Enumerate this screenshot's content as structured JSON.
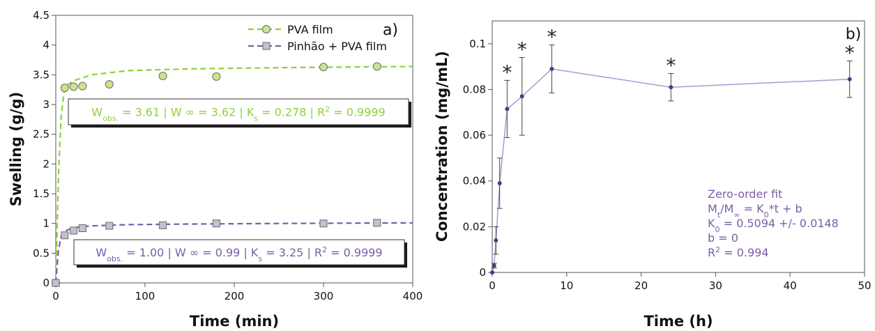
{
  "chart_data": [
    {
      "type": "line",
      "panel_label": "a)",
      "xlabel": "Time (min)",
      "ylabel": "Swelling (g/g)",
      "xlim": [
        0,
        400
      ],
      "ylim": [
        0,
        4.5
      ],
      "xticks": [
        0,
        100,
        200,
        300,
        400
      ],
      "yticks": [
        0,
        0.5,
        1,
        1.5,
        2,
        2.5,
        3,
        3.5,
        4,
        4.5
      ],
      "grid": false,
      "legend_position": "top-right",
      "series": [
        {
          "name": "PVA film",
          "color": "#8fcf3c",
          "marker": "circle",
          "points": [
            [
              0,
              0
            ],
            [
              10,
              3.28
            ],
            [
              20,
              3.3
            ],
            [
              30,
              3.31
            ],
            [
              60,
              3.34
            ],
            [
              120,
              3.48
            ],
            [
              180,
              3.47
            ],
            [
              300,
              3.63
            ],
            [
              360,
              3.64
            ]
          ],
          "fit": [
            [
              0,
              0
            ],
            [
              3,
              1.8
            ],
            [
              6,
              2.8
            ],
            [
              10,
              3.3
            ],
            [
              20,
              3.4
            ],
            [
              40,
              3.5
            ],
            [
              80,
              3.57
            ],
            [
              150,
              3.6
            ],
            [
              250,
              3.62
            ],
            [
              400,
              3.64
            ]
          ],
          "annotation_parts": [
            {
              "text": "W",
              "sub": false
            },
            {
              "text": "obs.",
              "sub": true
            },
            {
              "text": " = 3.61 | W ∞ = 3.62 | K",
              "sub": false
            },
            {
              "text": "s",
              "sub": true
            },
            {
              "text": " = 0.278 | R",
              "sub": false
            },
            {
              "text": "2",
              "sup": true
            },
            {
              "text": " = 0.9999",
              "sub": false
            }
          ]
        },
        {
          "name": "Pinhão + PVA film",
          "color": "#7b5ea6",
          "marker": "square",
          "points": [
            [
              0,
              0
            ],
            [
              10,
              0.8
            ],
            [
              20,
              0.88
            ],
            [
              30,
              0.92
            ],
            [
              60,
              0.96
            ],
            [
              120,
              0.97
            ],
            [
              180,
              1.0
            ],
            [
              300,
              1.0
            ],
            [
              360,
              1.01
            ]
          ],
          "fit": [
            [
              0,
              0
            ],
            [
              3,
              0.55
            ],
            [
              6,
              0.78
            ],
            [
              10,
              0.87
            ],
            [
              20,
              0.93
            ],
            [
              40,
              0.96
            ],
            [
              80,
              0.98
            ],
            [
              150,
              0.99
            ],
            [
              250,
              1.0
            ],
            [
              400,
              1.01
            ]
          ],
          "annotation_parts": [
            {
              "text": "W",
              "sub": false
            },
            {
              "text": "obs.",
              "sub": true
            },
            {
              "text": " = 1.00 | W ∞ = 0.99 | K",
              "sub": false
            },
            {
              "text": "s",
              "sub": true
            },
            {
              "text": " = 3.25 | R",
              "sub": false
            },
            {
              "text": "2",
              "sup": true
            },
            {
              "text": " = 0.9999",
              "sub": false
            }
          ]
        }
      ]
    },
    {
      "type": "line",
      "panel_label": "b)",
      "xlabel": "Time (h)",
      "ylabel": "Concentration (mg/mL)",
      "xlim": [
        0,
        50
      ],
      "ylim": [
        0,
        0.11
      ],
      "xticks": [
        0,
        10,
        20,
        30,
        40,
        50
      ],
      "yticks": [
        0,
        0.02,
        0.04,
        0.06,
        0.08,
        0.1
      ],
      "grid": false,
      "legend_position": "none",
      "series": [
        {
          "color": "#7b5ea6",
          "points": [
            {
              "x": 0,
              "y": 0.0,
              "err": 0.0
            },
            {
              "x": 0.25,
              "y": 0.003,
              "err": 0.001
            },
            {
              "x": 0.5,
              "y": 0.014,
              "err": 0.006
            },
            {
              "x": 1,
              "y": 0.039,
              "err": 0.011
            },
            {
              "x": 2,
              "y": 0.0715,
              "err": 0.0125
            },
            {
              "x": 4,
              "y": 0.077,
              "err": 0.017
            },
            {
              "x": 8,
              "y": 0.089,
              "err": 0.0105
            },
            {
              "x": 24,
              "y": 0.081,
              "err": 0.006
            },
            {
              "x": 48,
              "y": 0.0845,
              "err": 0.008
            }
          ],
          "significance_marker": "*",
          "significant_x": [
            2,
            4,
            8,
            24,
            48
          ]
        }
      ],
      "annotation_color": "#7b5ea6",
      "annotation_lines": [
        [
          {
            "text": "Zero-order fit"
          }
        ],
        [
          {
            "text": "M"
          },
          {
            "text": "t",
            "sub": true
          },
          {
            "text": "/M"
          },
          {
            "text": "∞",
            "sub": true
          },
          {
            "text": " = K"
          },
          {
            "text": "0",
            "sub": true
          },
          {
            "text": "*t + b"
          }
        ],
        [
          {
            "text": "K"
          },
          {
            "text": "0",
            "sub": true
          },
          {
            "text": " = 0.5094 +/- 0.0148"
          }
        ],
        [
          {
            "text": "b = 0"
          }
        ],
        [
          {
            "text": "R"
          },
          {
            "text": "2",
            "sup": true
          },
          {
            "text": " = 0.994"
          }
        ]
      ]
    }
  ]
}
